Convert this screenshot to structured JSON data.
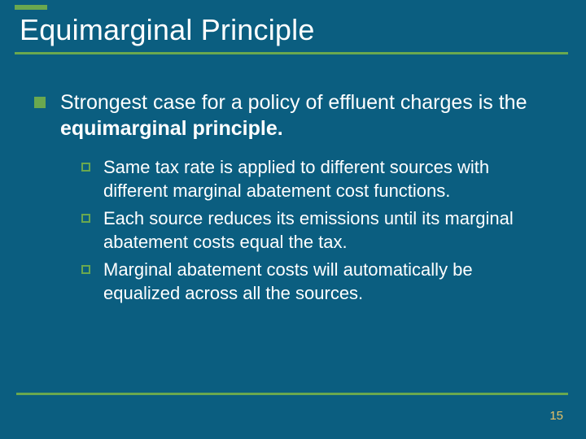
{
  "colors": {
    "background": "#0b5e80",
    "text": "#ffffff",
    "accent": "#6aa84f",
    "rule": "#6aa84f",
    "pagenum": "#e8c266"
  },
  "typography": {
    "title_fontsize": 36,
    "lvl1_fontsize": 25,
    "lvl2_fontsize": 22,
    "pagenum_fontsize": 15,
    "font_family": "Arial"
  },
  "title": "Equimarginal Principle",
  "main_point": {
    "prefix": "Strongest case for a policy of effluent charges is the ",
    "bold": "equimarginal principle."
  },
  "sub_points": [
    "Same tax rate is applied to different sources with different marginal abatement cost functions.",
    "Each source reduces its emissions until its marginal abatement costs equal the tax.",
    "Marginal abatement costs will automatically be equalized across all the sources."
  ],
  "page_number": "15"
}
